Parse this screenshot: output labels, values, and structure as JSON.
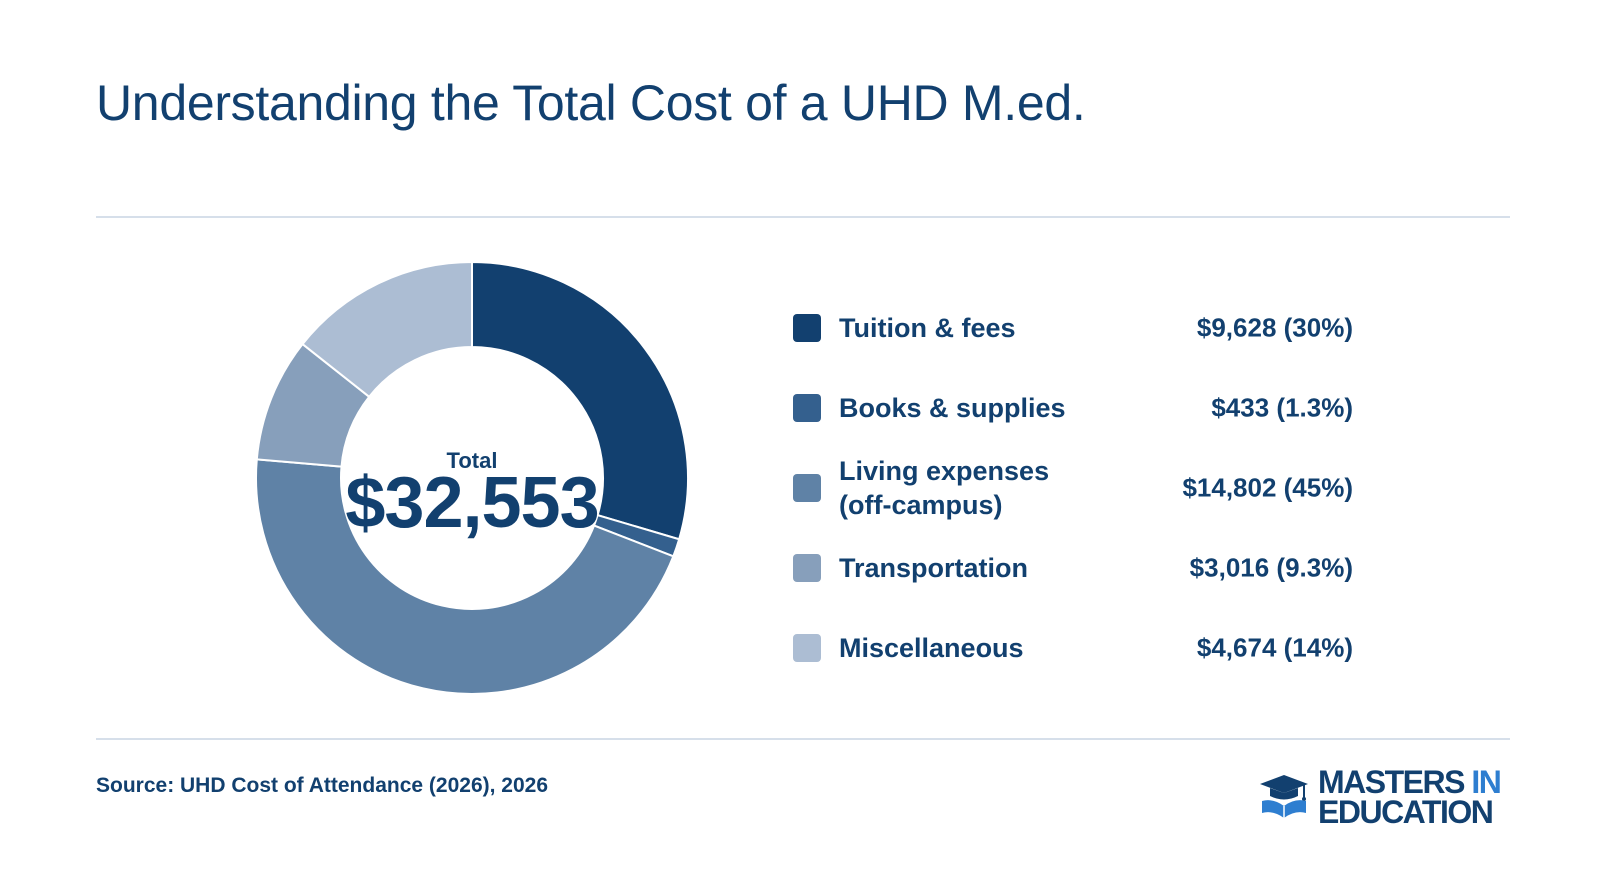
{
  "title": "Understanding the Total Cost of a UHD M.ed.",
  "center": {
    "label": "Total",
    "value": "$32,553"
  },
  "chart_data": {
    "type": "pie",
    "title": "Understanding the Total Cost of a UHD M.ed.",
    "total": 32553,
    "categories": [
      "Tuition & fees",
      "Books & supplies",
      "Living expenses (off-campus)",
      "Transportation",
      "Miscellaneous"
    ],
    "values": [
      9628,
      433,
      14802,
      3016,
      4674
    ],
    "value_labels": [
      "$9,628 (30%)",
      "$433 (1.3%)",
      "$14,802 (45%)",
      "$3,016 (9.3%)",
      "$4,674 (14%)"
    ],
    "colors": [
      "#12406f",
      "#34608e",
      "#5f82a6",
      "#879fbb",
      "#acbdd3"
    ]
  },
  "legend": [
    {
      "line1": "Tuition & fees",
      "line2": "",
      "value": "$9,628 (30%)"
    },
    {
      "line1": "Books & supplies",
      "line2": "",
      "value": "$433 (1.3%)"
    },
    {
      "line1": "Living expenses",
      "line2": "(off-campus)",
      "value": "$14,802 (45%)"
    },
    {
      "line1": "Transportation",
      "line2": "",
      "value": "$3,016 (9.3%)"
    },
    {
      "line1": "Miscellaneous",
      "line2": "",
      "value": "$4,674 (14%)"
    }
  ],
  "source": "Source: UHD Cost of Attendance (2026), 2026",
  "logo": {
    "line1_main": "MASTERS",
    "line1_accent": "IN",
    "line2": "EDUCATION",
    "icon": "graduation-cap-book-icon"
  }
}
